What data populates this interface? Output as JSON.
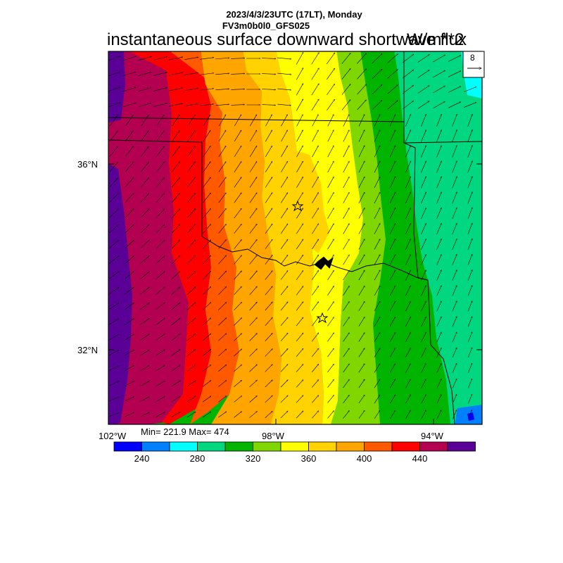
{
  "header": {
    "date_line": "2023/4/3/23UTC (17LT), Monday",
    "model_line": "FV3m0b0l0_GFS025",
    "title": "instantaneous surface downward shortwave flux",
    "units": "W/m**2"
  },
  "map": {
    "lat_labels": [
      "36°N",
      "32°N"
    ],
    "lon_labels": [
      "102°W",
      "98°W",
      "94°W"
    ],
    "vector_reference": "8",
    "station_markers": [
      "star",
      "star"
    ]
  },
  "stats": {
    "text": "Min= 221.9 Max= 474"
  },
  "colorbar": {
    "colors": [
      "#0000ff",
      "#0080ff",
      "#00ffff",
      "#00d77f",
      "#00b400",
      "#80d700",
      "#ffff00",
      "#ffd200",
      "#ffa500",
      "#ff5a00",
      "#ff0000",
      "#b40050",
      "#5a0096"
    ],
    "labels": [
      "240",
      "280",
      "320",
      "360",
      "400",
      "440"
    ]
  }
}
